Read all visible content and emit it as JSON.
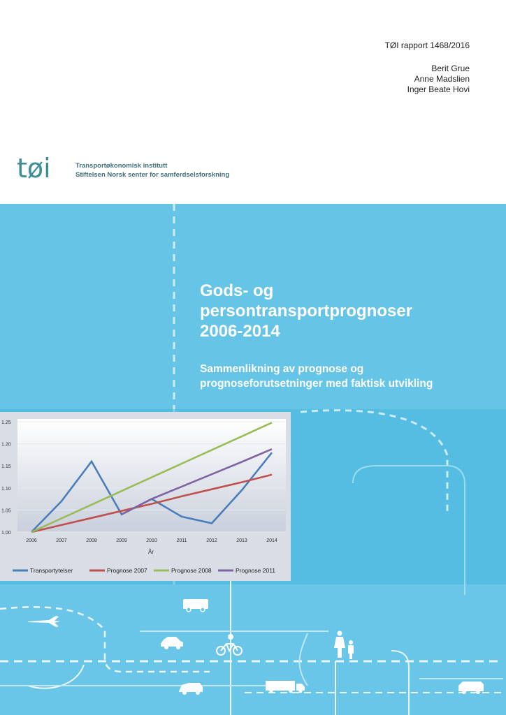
{
  "meta": {
    "report_number": "TØI rapport 1468/2016",
    "authors": [
      "Berit Grue",
      "Anne Madslien",
      "Inger Beate Hovi"
    ]
  },
  "logo": {
    "mark": "tøi",
    "line1": "Transportøkonomisk institutt",
    "line2": "Stiftelsen Norsk senter for samferdselsforskning"
  },
  "cover": {
    "title_line1": "Gods- og",
    "title_line2": "persontransportprognoser",
    "title_line3": "2006-2014",
    "subtitle_line1": "Sammenlikning av prognose og",
    "subtitle_line2": "prognoseforutsetninger med faktisk utvikling"
  },
  "colors": {
    "background_blue": "#66c5e6",
    "logo_teal": "#3f8f98"
  },
  "icons": [
    "airplane-icon",
    "bus-icon",
    "car-icon",
    "bicycle-icon",
    "pedestrians-icon",
    "truck-icon",
    "van-icon"
  ],
  "chart_data": {
    "type": "line",
    "x": [
      "2006",
      "2007",
      "2008",
      "2009",
      "2010",
      "2011",
      "2012",
      "2013",
      "2014"
    ],
    "xlabel": "År",
    "ylabel": "",
    "ylim": [
      1.0,
      1.25
    ],
    "yticks": [
      "1.00",
      "1.05",
      "1.10",
      "1.15",
      "1.20",
      "1.25"
    ],
    "legend_position": "bottom",
    "series": [
      {
        "name": "Transportytelser",
        "color": "#4a7ebb",
        "values": [
          1.0,
          1.07,
          1.16,
          1.04,
          1.075,
          1.035,
          1.02,
          1.095,
          1.18
        ]
      },
      {
        "name": "Prognose 2007",
        "color": "#c0504d",
        "values": [
          1.0,
          1.016,
          1.032,
          1.048,
          1.064,
          1.081,
          1.097,
          1.113,
          1.13
        ]
      },
      {
        "name": "Prognose 2008",
        "color": "#9bbb59",
        "values": [
          1.0,
          1.031,
          1.062,
          1.093,
          1.124,
          1.155,
          1.186,
          1.217,
          1.248
        ]
      },
      {
        "name": "Prognose 2011",
        "color": "#8064a2",
        "values": [
          null,
          null,
          null,
          1.04,
          1.075,
          1.103,
          1.131,
          1.159,
          1.188
        ]
      }
    ]
  }
}
